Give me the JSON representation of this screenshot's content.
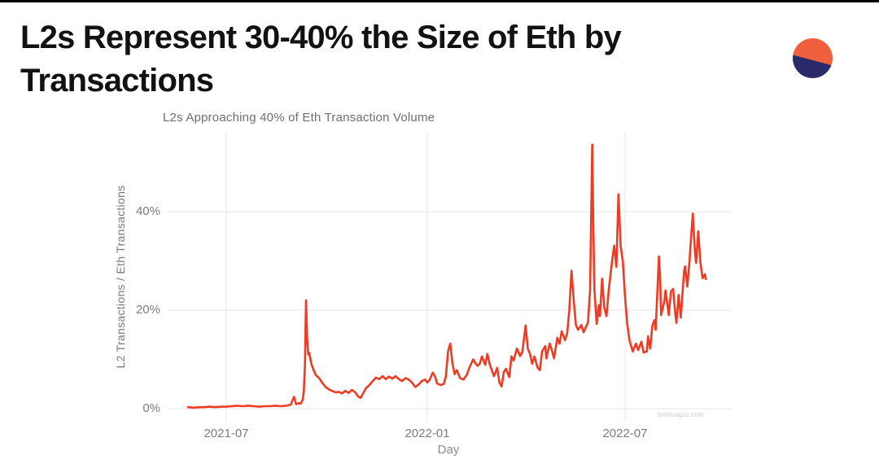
{
  "page": {
    "top_bar_color": "#000000",
    "background_color": "#ffffff"
  },
  "header": {
    "title_line1": "L2s Represent 30-40% the Size of Eth by",
    "title_line2": "Transactions",
    "logo": {
      "icon": "circle-split-logo",
      "top_color": "#f1603e",
      "bottom_color": "#2b2a68"
    }
  },
  "chart_data": {
    "type": "line",
    "title": "L2s Approaching 40% of Eth Transaction Volume",
    "xlabel": "Day",
    "ylabel": "L2 Transactions / Eth Transactions",
    "watermark": "tomtunguz.com",
    "line_color": "#ee3b23",
    "grid_color": "#e7e7e7",
    "grid": true,
    "legend": "none",
    "ylim_pct": [
      0,
      56
    ],
    "y_ticks": [
      {
        "label": "0%",
        "value": 0
      },
      {
        "label": "20%",
        "value": 20
      },
      {
        "label": "40%",
        "value": 40
      }
    ],
    "x_ticks": [
      {
        "label": "2021-07",
        "date": "2021-07-01"
      },
      {
        "label": "2022-01",
        "date": "2022-01-01"
      },
      {
        "label": "2022-07",
        "date": "2022-07-01"
      }
    ],
    "series": [
      {
        "name": "L2 Transactions / Eth Transactions (%)",
        "points": [
          [
            "2021-05-27",
            0.3
          ],
          [
            "2021-06-01",
            0.2
          ],
          [
            "2021-06-06",
            0.3
          ],
          [
            "2021-06-11",
            0.3
          ],
          [
            "2021-06-16",
            0.4
          ],
          [
            "2021-06-21",
            0.3
          ],
          [
            "2021-06-26",
            0.4
          ],
          [
            "2021-07-01",
            0.4
          ],
          [
            "2021-07-06",
            0.5
          ],
          [
            "2021-07-11",
            0.6
          ],
          [
            "2021-07-16",
            0.5
          ],
          [
            "2021-07-21",
            0.6
          ],
          [
            "2021-07-26",
            0.5
          ],
          [
            "2021-07-31",
            0.4
          ],
          [
            "2021-08-05",
            0.5
          ],
          [
            "2021-08-10",
            0.5
          ],
          [
            "2021-08-15",
            0.6
          ],
          [
            "2021-08-20",
            0.5
          ],
          [
            "2021-08-25",
            0.6
          ],
          [
            "2021-08-29",
            0.8
          ],
          [
            "2021-09-01",
            2.4
          ],
          [
            "2021-09-03",
            0.9
          ],
          [
            "2021-09-05",
            1.1
          ],
          [
            "2021-09-07",
            1.0
          ],
          [
            "2021-09-09",
            1.8
          ],
          [
            "2021-09-10",
            3.5
          ],
          [
            "2021-09-11",
            9.0
          ],
          [
            "2021-09-12",
            22.0
          ],
          [
            "2021-09-13",
            14.5
          ],
          [
            "2021-09-14",
            11.0
          ],
          [
            "2021-09-15",
            11.3
          ],
          [
            "2021-09-17",
            9.0
          ],
          [
            "2021-09-19",
            7.8
          ],
          [
            "2021-09-21",
            6.8
          ],
          [
            "2021-09-24",
            6.2
          ],
          [
            "2021-09-27",
            5.2
          ],
          [
            "2021-09-30",
            4.4
          ],
          [
            "2021-10-03",
            3.9
          ],
          [
            "2021-10-06",
            3.6
          ],
          [
            "2021-10-09",
            3.3
          ],
          [
            "2021-10-12",
            3.4
          ],
          [
            "2021-10-15",
            3.1
          ],
          [
            "2021-10-18",
            3.6
          ],
          [
            "2021-10-21",
            3.2
          ],
          [
            "2021-10-24",
            3.8
          ],
          [
            "2021-10-27",
            3.3
          ],
          [
            "2021-10-30",
            2.4
          ],
          [
            "2021-11-01",
            2.2
          ],
          [
            "2021-11-03",
            3.0
          ],
          [
            "2021-11-06",
            4.2
          ],
          [
            "2021-11-09",
            4.8
          ],
          [
            "2021-11-12",
            5.6
          ],
          [
            "2021-11-15",
            6.3
          ],
          [
            "2021-11-18",
            6.0
          ],
          [
            "2021-11-21",
            6.6
          ],
          [
            "2021-11-24",
            6.0
          ],
          [
            "2021-11-27",
            6.5
          ],
          [
            "2021-11-30",
            6.1
          ],
          [
            "2021-12-03",
            6.6
          ],
          [
            "2021-12-06",
            6.0
          ],
          [
            "2021-12-09",
            5.6
          ],
          [
            "2021-12-12",
            6.2
          ],
          [
            "2021-12-15",
            5.9
          ],
          [
            "2021-12-18",
            5.3
          ],
          [
            "2021-12-21",
            4.4
          ],
          [
            "2021-12-24",
            4.9
          ],
          [
            "2021-12-27",
            5.6
          ],
          [
            "2021-12-30",
            5.9
          ],
          [
            "2022-01-01",
            5.3
          ],
          [
            "2022-01-03",
            5.8
          ],
          [
            "2022-01-06",
            7.3
          ],
          [
            "2022-01-08",
            6.6
          ],
          [
            "2022-01-10",
            5.1
          ],
          [
            "2022-01-13",
            4.8
          ],
          [
            "2022-01-16",
            5.0
          ],
          [
            "2022-01-18",
            6.5
          ],
          [
            "2022-01-20",
            11.6
          ],
          [
            "2022-01-22",
            13.2
          ],
          [
            "2022-01-24",
            9.2
          ],
          [
            "2022-01-26",
            7.0
          ],
          [
            "2022-01-28",
            7.8
          ],
          [
            "2022-01-31",
            6.2
          ],
          [
            "2022-02-03",
            5.9
          ],
          [
            "2022-02-06",
            6.8
          ],
          [
            "2022-02-09",
            8.6
          ],
          [
            "2022-02-12",
            10.0
          ],
          [
            "2022-02-14",
            9.2
          ],
          [
            "2022-02-16",
            8.7
          ],
          [
            "2022-02-18",
            9.1
          ],
          [
            "2022-02-20",
            10.6
          ],
          [
            "2022-02-23",
            8.9
          ],
          [
            "2022-02-25",
            11.1
          ],
          [
            "2022-02-27",
            9.1
          ],
          [
            "2022-03-03",
            6.6
          ],
          [
            "2022-03-06",
            8.3
          ],
          [
            "2022-03-08",
            5.3
          ],
          [
            "2022-03-10",
            4.5
          ],
          [
            "2022-03-12",
            7.4
          ],
          [
            "2022-03-14",
            8.1
          ],
          [
            "2022-03-17",
            6.4
          ],
          [
            "2022-03-19",
            10.6
          ],
          [
            "2022-03-21",
            9.8
          ],
          [
            "2022-03-24",
            12.2
          ],
          [
            "2022-03-27",
            10.7
          ],
          [
            "2022-03-29",
            11.5
          ],
          [
            "2022-04-01",
            16.9
          ],
          [
            "2022-04-03",
            12.2
          ],
          [
            "2022-04-05",
            11.1
          ],
          [
            "2022-04-07",
            9.1
          ],
          [
            "2022-04-09",
            10.6
          ],
          [
            "2022-04-12",
            8.3
          ],
          [
            "2022-04-14",
            7.8
          ],
          [
            "2022-04-16",
            11.6
          ],
          [
            "2022-04-19",
            12.7
          ],
          [
            "2022-04-20",
            10.2
          ],
          [
            "2022-04-23",
            13.2
          ],
          [
            "2022-04-25",
            11.9
          ],
          [
            "2022-04-27",
            10.2
          ],
          [
            "2022-04-30",
            14.4
          ],
          [
            "2022-05-02",
            13.2
          ],
          [
            "2022-05-04",
            15.7
          ],
          [
            "2022-05-07",
            13.9
          ],
          [
            "2022-05-09",
            15.2
          ],
          [
            "2022-05-11",
            20.0
          ],
          [
            "2022-05-13",
            28.0
          ],
          [
            "2022-05-15",
            22.0
          ],
          [
            "2022-05-17",
            17.0
          ],
          [
            "2022-05-19",
            16.0
          ],
          [
            "2022-05-22",
            17.0
          ],
          [
            "2022-05-24",
            15.5
          ],
          [
            "2022-05-26",
            16.5
          ],
          [
            "2022-05-28",
            17.5
          ],
          [
            "2022-05-30",
            24.0
          ],
          [
            "2022-06-01",
            53.6
          ],
          [
            "2022-06-02",
            36.0
          ],
          [
            "2022-06-03",
            24.0
          ],
          [
            "2022-06-05",
            17.2
          ],
          [
            "2022-06-07",
            21.0
          ],
          [
            "2022-06-08",
            18.8
          ],
          [
            "2022-06-10",
            26.4
          ],
          [
            "2022-06-12",
            20.5
          ],
          [
            "2022-06-14",
            18.8
          ],
          [
            "2022-06-16",
            24.0
          ],
          [
            "2022-06-19",
            29.8
          ],
          [
            "2022-06-21",
            33.1
          ],
          [
            "2022-06-23",
            28.8
          ],
          [
            "2022-06-25",
            43.5
          ],
          [
            "2022-06-27",
            33.0
          ],
          [
            "2022-06-29",
            29.8
          ],
          [
            "2022-07-01",
            22.6
          ],
          [
            "2022-07-03",
            17.2
          ],
          [
            "2022-07-05",
            13.9
          ],
          [
            "2022-07-08",
            11.6
          ],
          [
            "2022-07-11",
            13.2
          ],
          [
            "2022-07-13",
            11.9
          ],
          [
            "2022-07-16",
            13.6
          ],
          [
            "2022-07-18",
            11.4
          ],
          [
            "2022-07-21",
            11.6
          ],
          [
            "2022-07-22",
            14.7
          ],
          [
            "2022-07-24",
            12.2
          ],
          [
            "2022-07-26",
            16.9
          ],
          [
            "2022-07-28",
            18.0
          ],
          [
            "2022-07-29",
            16.0
          ],
          [
            "2022-08-01",
            30.9
          ],
          [
            "2022-08-02",
            26.8
          ],
          [
            "2022-08-03",
            19.0
          ],
          [
            "2022-08-06",
            21.8
          ],
          [
            "2022-08-07",
            24.0
          ],
          [
            "2022-08-10",
            19.0
          ],
          [
            "2022-08-12",
            23.8
          ],
          [
            "2022-08-14",
            24.3
          ],
          [
            "2022-08-16",
            19.0
          ],
          [
            "2022-08-17",
            17.4
          ],
          [
            "2022-08-19",
            23.1
          ],
          [
            "2022-08-21",
            18.5
          ],
          [
            "2022-08-24",
            27.9
          ],
          [
            "2022-08-25",
            28.9
          ],
          [
            "2022-08-27",
            24.8
          ],
          [
            "2022-08-29",
            30.1
          ],
          [
            "2022-09-01",
            39.6
          ],
          [
            "2022-09-03",
            31.8
          ],
          [
            "2022-09-04",
            29.6
          ],
          [
            "2022-09-06",
            36.0
          ],
          [
            "2022-09-08",
            29.6
          ],
          [
            "2022-09-10",
            26.5
          ],
          [
            "2022-09-12",
            27.3
          ],
          [
            "2022-09-13",
            26.3
          ]
        ]
      }
    ]
  }
}
